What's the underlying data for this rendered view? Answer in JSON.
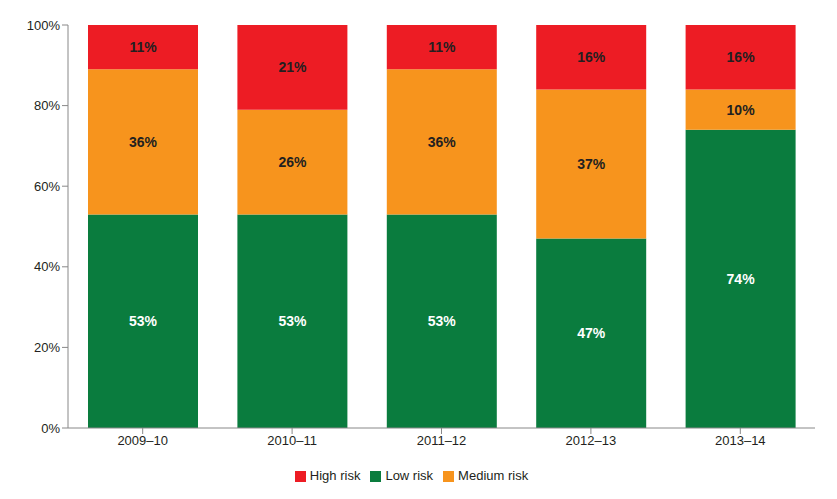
{
  "chart_data": {
    "type": "bar",
    "stacked": true,
    "data_labels": true,
    "legend": "bottom",
    "grid": false,
    "categories": [
      "2009–10",
      "2010–11",
      "2011–12",
      "2012–13",
      "2013–14"
    ],
    "ylim": [
      0,
      100
    ],
    "yticks": [
      {
        "value": 0,
        "label": "0%"
      },
      {
        "value": 20,
        "label": "20%"
      },
      {
        "value": 40,
        "label": "40%"
      },
      {
        "value": 60,
        "label": "60%"
      },
      {
        "value": 80,
        "label": "80%"
      },
      {
        "value": 100,
        "label": "100%"
      }
    ],
    "series": [
      {
        "name": "Low risk",
        "color": "#0a7c3e",
        "values": [
          53,
          53,
          53,
          47,
          74
        ],
        "value_labels": [
          "53%",
          "53%",
          "53%",
          "47%",
          "74%"
        ]
      },
      {
        "name": "Medium risk",
        "color": "#f7941d",
        "values": [
          36,
          26,
          36,
          37,
          10
        ],
        "value_labels": [
          "36%",
          "26%",
          "36%",
          "37%",
          "10%"
        ]
      },
      {
        "name": "High risk",
        "color": "#ed1c24",
        "values": [
          11,
          21,
          11,
          16,
          16
        ],
        "value_labels": [
          "11%",
          "21%",
          "11%",
          "16%",
          "16%"
        ]
      }
    ]
  }
}
